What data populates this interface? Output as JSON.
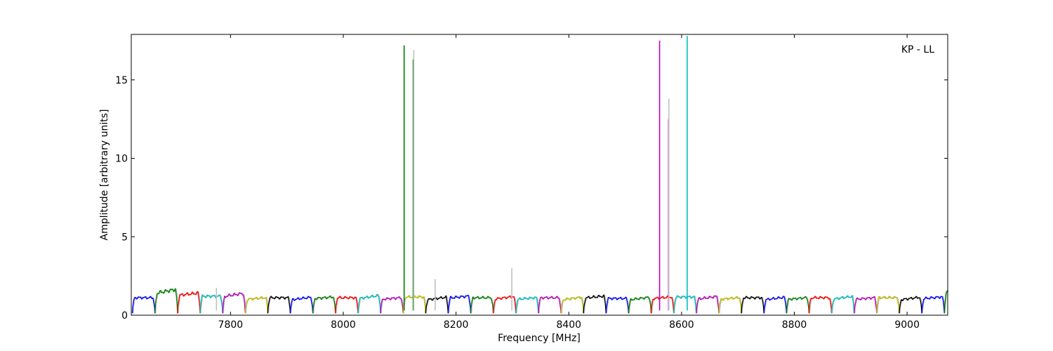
{
  "chart_data": {
    "type": "line",
    "title": "",
    "xlabel": "Frequency [MHz]",
    "ylabel": "Amplitude [arbitrary units]",
    "annotation": "KP - LL",
    "xlim": [
      7624,
      9072
    ],
    "ylim": [
      0,
      17.9
    ],
    "xticks": [
      7800,
      8000,
      8200,
      8400,
      8600,
      8800,
      9000
    ],
    "yticks": [
      0,
      5,
      10,
      15
    ],
    "grid": false,
    "legend": "none",
    "channel_width_mhz": 40,
    "first_channel_start_mhz": 7626,
    "channel_colors": [
      "#0000ff",
      "#008000",
      "#ff0000",
      "#00bfbf",
      "#bf00bf",
      "#bfbf00",
      "#000000"
    ],
    "background_color": "#c0c0c0",
    "channel_peak_amplitude": [
      1.2,
      1.65,
      1.45,
      1.3,
      1.4,
      1.15,
      1.2,
      1.15,
      1.2,
      1.2,
      1.25,
      1.15,
      1.25,
      1.15,
      1.25,
      1.2,
      1.2,
      1.15,
      1.2,
      1.15,
      1.25,
      1.15,
      1.15,
      1.2,
      1.25,
      1.2,
      1.15,
      1.2,
      1.15,
      1.15,
      1.2,
      1.2,
      1.15,
      1.2,
      1.15,
      1.2,
      1.6,
      1.2
    ],
    "spikes": [
      {
        "x": 8108,
        "y": 17.2,
        "color": "#008000"
      },
      {
        "x": 8124,
        "y": 16.3,
        "color": "#008000"
      },
      {
        "x": 8125,
        "y": 16.9,
        "color": "#c0c0c0"
      },
      {
        "x": 8163,
        "y": 2.3,
        "color": "#c0c0c0"
      },
      {
        "x": 8299,
        "y": 3.0,
        "color": "#c0c0c0"
      },
      {
        "x": 7775,
        "y": 1.75,
        "color": "#c0c0c0"
      },
      {
        "x": 8561,
        "y": 17.5,
        "color": "#bf00bf"
      },
      {
        "x": 8577,
        "y": 12.5,
        "color": "#bf00bf"
      },
      {
        "x": 8577.5,
        "y": 13.8,
        "color": "#c0c0c0"
      },
      {
        "x": 8610,
        "y": 17.8,
        "color": "#00bfbf"
      }
    ]
  }
}
